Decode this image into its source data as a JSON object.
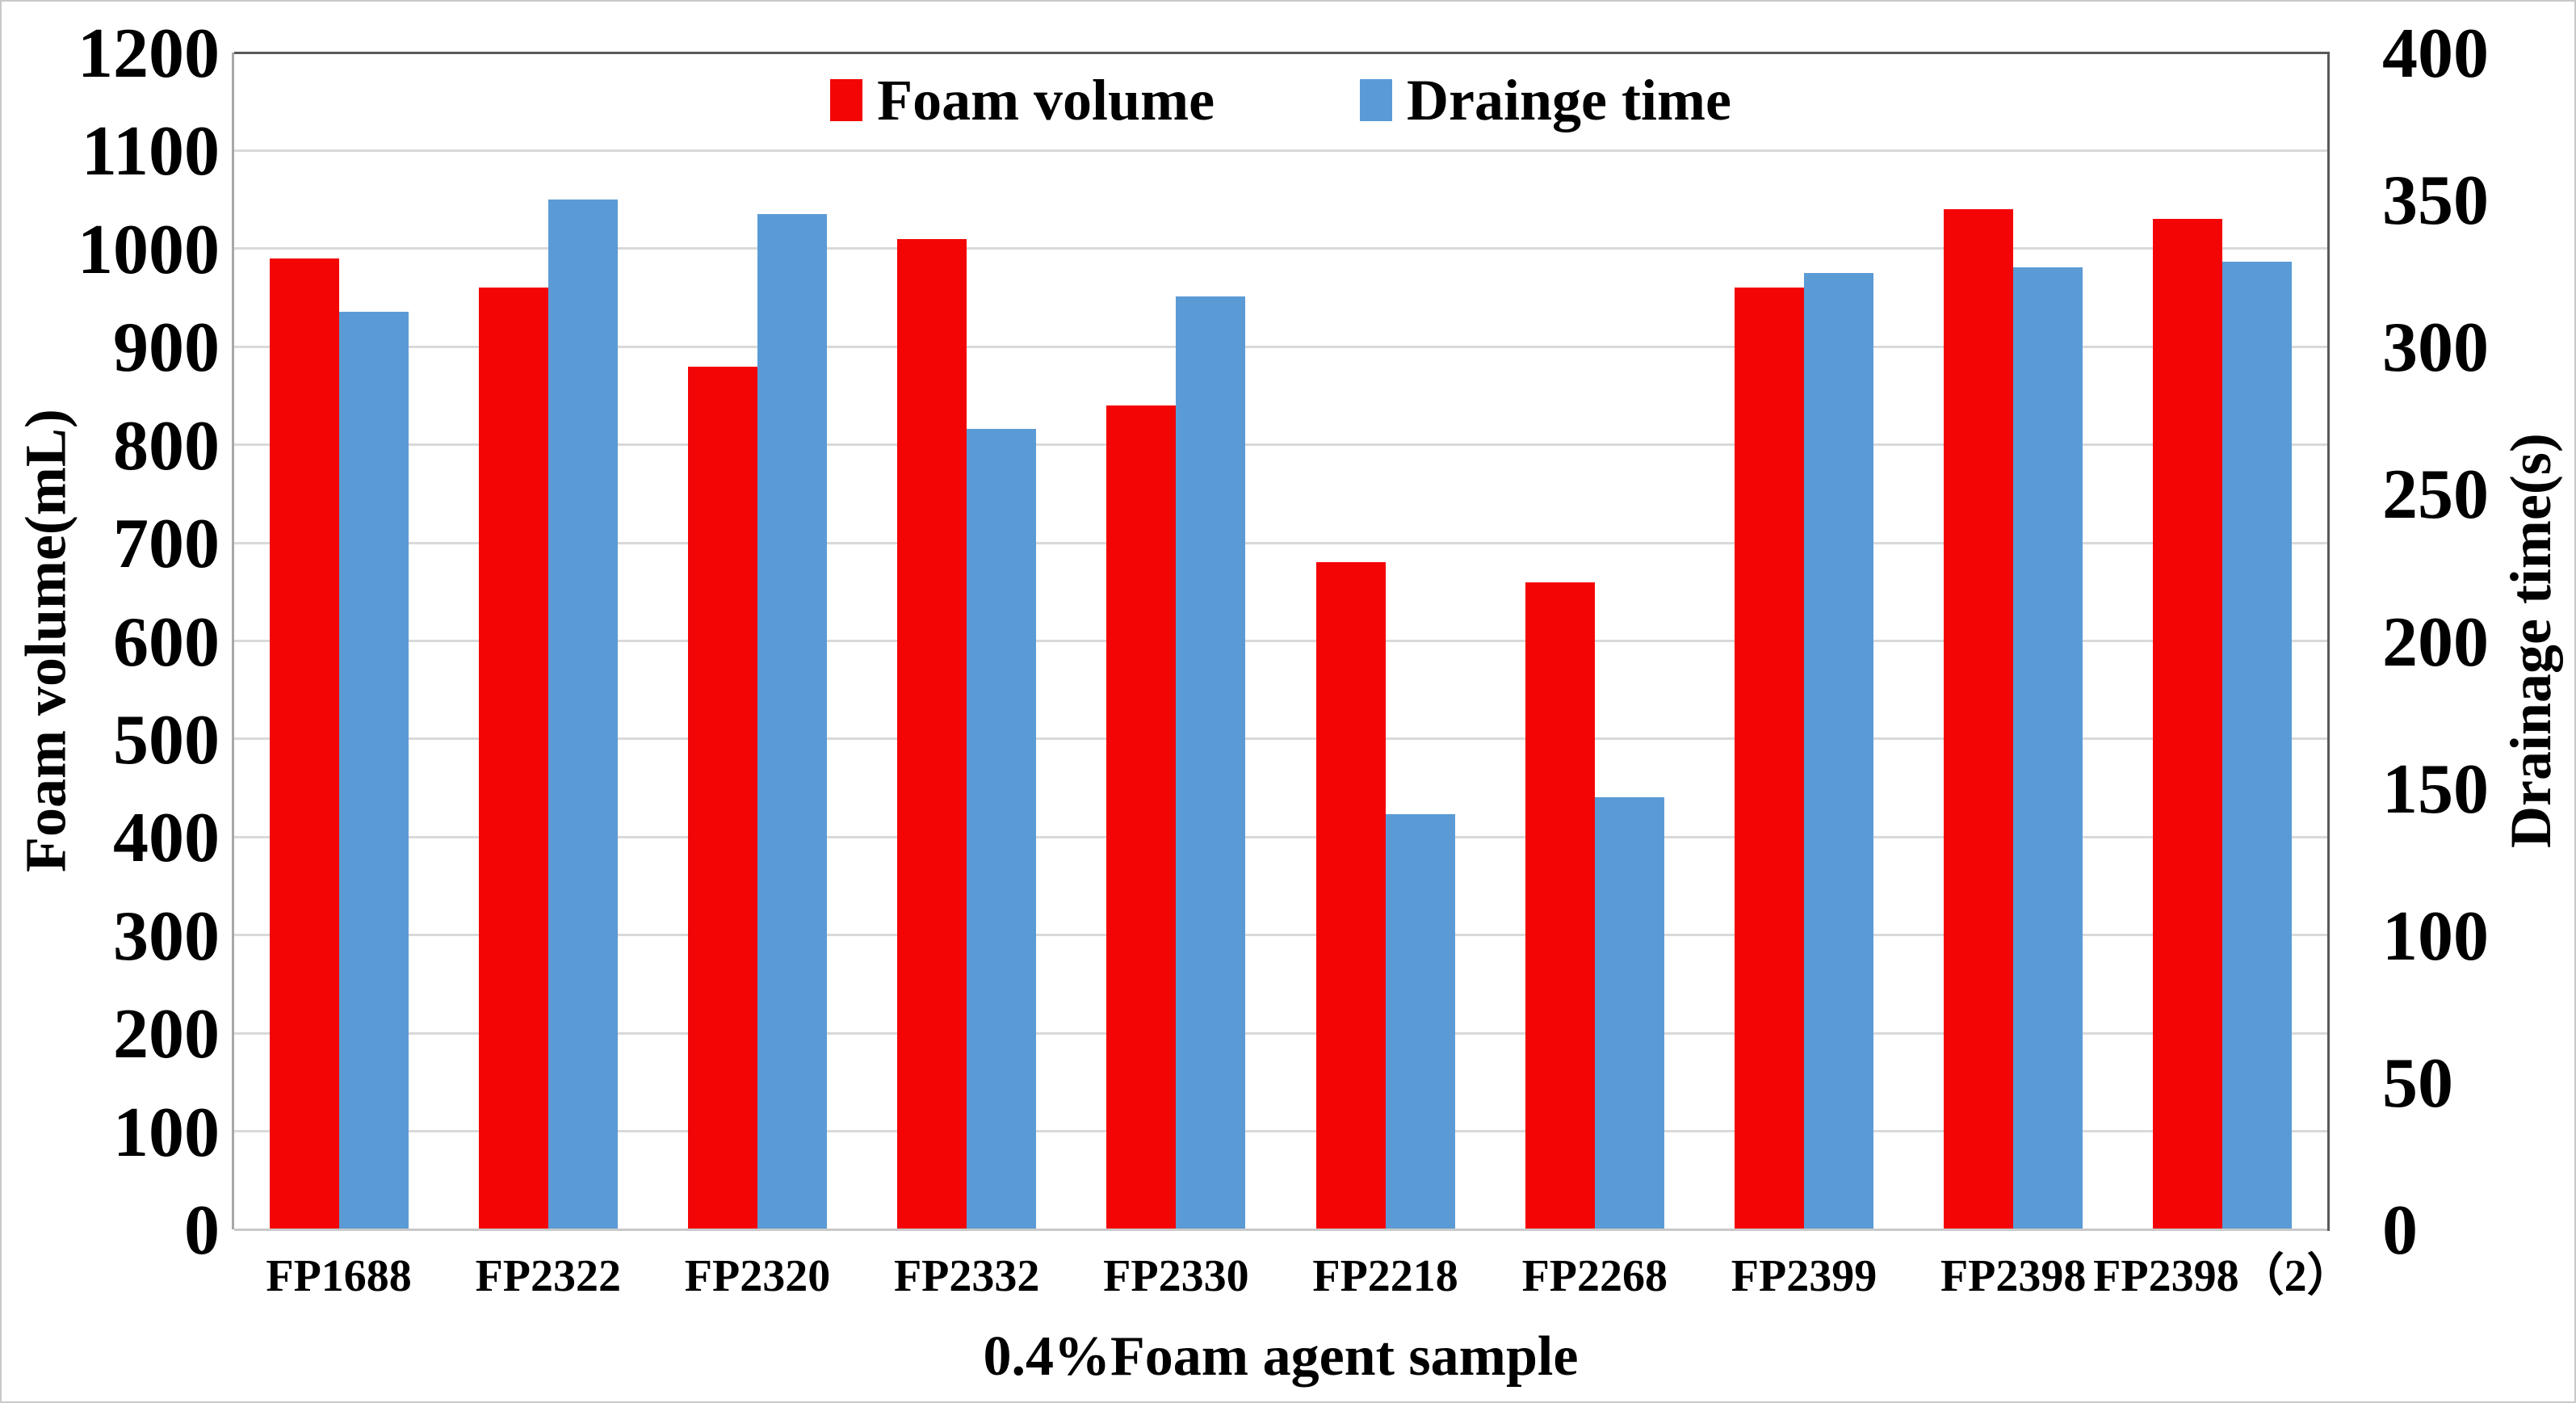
{
  "chart_data": {
    "type": "bar",
    "title": "",
    "categories": [
      "FP1688",
      "FP2322",
      "FP2320",
      "FP2332",
      "FP2330",
      "FP2218",
      "FP2268",
      "FP2399",
      "FP2398",
      "FP2398（2）"
    ],
    "series": [
      {
        "name": "Foam volume",
        "axis": "left",
        "color": "#f40505",
        "values": [
          990,
          960,
          880,
          1010,
          840,
          680,
          660,
          960,
          1040,
          1030
        ]
      },
      {
        "name": "Drainge time",
        "axis": "right",
        "color": "#5b9bd5",
        "values": [
          312,
          350,
          345,
          272,
          317,
          141,
          147,
          325,
          327,
          329
        ]
      }
    ],
    "left_axis": {
      "label": "Foam volume(mL)",
      "min": 0,
      "max": 1200,
      "tick_step": 100
    },
    "right_axis": {
      "label": "Drainage time(s)",
      "min": 0,
      "max": 400,
      "tick_step": 50
    },
    "x_axis": {
      "label": "0.4%Foam agent sample"
    },
    "legend": {
      "position": "top",
      "entries": [
        "Foam volume",
        "Drainge time"
      ]
    },
    "grid": true,
    "colors": {
      "gridline": "#d9d9d9",
      "frame_dark": "#595959",
      "axis_left": "#a8a8a8",
      "axis_bottom": "#c9c9c9",
      "background": "#ffffff"
    }
  }
}
